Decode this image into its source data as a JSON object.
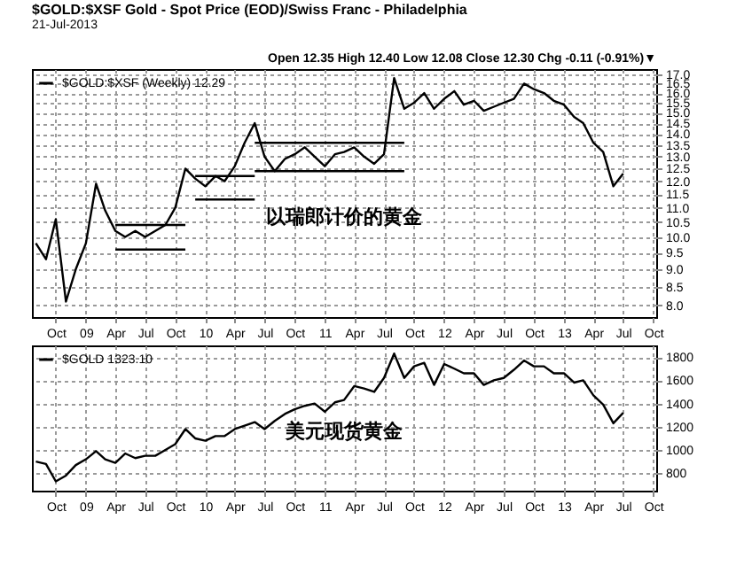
{
  "chart_data": [
    {
      "type": "line",
      "title": "$GOLD:$XSF Gold - Spot Price (EOD)/Swiss Franc - Philadelphia",
      "subtitle": "21-Jul-2013",
      "annotations": [
        "Open 12.35 High 12.40 Low 12.08 Close 12.30 Chg -0.11 (-0.91%)▼",
        "以瑞郎计价的黄金"
      ],
      "x": [
        "2008-08",
        "2008-09",
        "2008-10",
        "2008-11",
        "2008-12",
        "2009-01",
        "2009-02",
        "2009-03",
        "2009-04",
        "2009-05",
        "2009-06",
        "2009-07",
        "2009-08",
        "2009-09",
        "2009-10",
        "2009-11",
        "2009-12",
        "2010-01",
        "2010-02",
        "2010-03",
        "2010-04",
        "2010-05",
        "2010-06",
        "2010-07",
        "2010-08",
        "2010-09",
        "2010-10",
        "2010-11",
        "2010-12",
        "2011-01",
        "2011-02",
        "2011-03",
        "2011-04",
        "2011-05",
        "2011-06",
        "2011-07",
        "2011-08",
        "2011-09",
        "2011-10",
        "2011-11",
        "2011-12",
        "2012-01",
        "2012-02",
        "2012-03",
        "2012-04",
        "2012-05",
        "2012-06",
        "2012-07",
        "2012-08",
        "2012-09",
        "2012-10",
        "2012-11",
        "2012-12",
        "2013-01",
        "2013-02",
        "2013-03",
        "2013-04",
        "2013-05",
        "2013-06",
        "2013-07"
      ],
      "series": [
        {
          "name": "$GOLD:$XSF (Weekly) 12.29",
          "color": "#000000",
          "values": [
            9.8,
            9.3,
            10.6,
            8.1,
            9.0,
            9.8,
            11.9,
            10.9,
            10.2,
            10.0,
            10.2,
            10.0,
            10.2,
            10.4,
            11.0,
            12.5,
            12.1,
            11.8,
            12.2,
            12.0,
            12.6,
            13.6,
            14.5,
            13.0,
            12.4,
            12.9,
            13.1,
            13.4,
            13.0,
            12.6,
            13.1,
            13.2,
            13.4,
            13.0,
            12.7,
            13.1,
            16.8,
            15.2,
            15.5,
            16.0,
            15.2,
            15.7,
            16.1,
            15.4,
            15.6,
            15.1,
            15.3,
            15.5,
            15.7,
            16.5,
            16.2,
            16.0,
            15.6,
            15.4,
            14.8,
            14.5,
            13.6,
            13.2,
            11.8,
            12.3
          ]
        },
        {
          "color": "#000000",
          "x": [
            "2009-04",
            "2009-11"
          ],
          "values": [
            10.4,
            10.4
          ]
        },
        {
          "color": "#000000",
          "x": [
            "2009-04",
            "2009-11"
          ],
          "values": [
            9.6,
            9.6
          ]
        },
        {
          "color": "#000000",
          "x": [
            "2009-12",
            "2010-06"
          ],
          "values": [
            12.2,
            12.2
          ]
        },
        {
          "color": "#000000",
          "x": [
            "2009-12",
            "2010-06"
          ],
          "values": [
            11.3,
            11.3
          ]
        },
        {
          "color": "#000000",
          "x": [
            "2010-06",
            "2011-09"
          ],
          "values": [
            13.6,
            13.6
          ]
        },
        {
          "color": "#000000",
          "x": [
            "2010-06",
            "2011-09"
          ],
          "values": [
            12.4,
            12.4
          ]
        }
      ],
      "log": "y",
      "ylim": [
        7.7,
        17.3
      ],
      "yticks": [
        {
          "value": 8,
          "label": "8.0"
        },
        8.5,
        {
          "value": 9,
          "label": "9.0"
        },
        9.5,
        {
          "value": 10,
          "label": "10.0"
        },
        10.5,
        {
          "value": 11,
          "label": "11.0"
        },
        11.5,
        {
          "value": 12,
          "label": "12.0"
        },
        12.5,
        {
          "value": 13,
          "label": "13.0"
        },
        13.5,
        {
          "value": 14,
          "label": "14.0"
        },
        14.5,
        {
          "value": 15,
          "label": "15.0"
        },
        15.5,
        {
          "value": 16,
          "label": "16.0"
        },
        16.5,
        {
          "value": 17,
          "label": "17.0"
        }
      ],
      "xlim": [
        "2008-07-20",
        "2013-10-10"
      ],
      "xticks": [
        {
          "value": "2008-10",
          "label": "Oct"
        },
        {
          "value": "2009-01",
          "label": "09"
        },
        {
          "value": "2009-04",
          "label": "Apr"
        },
        {
          "value": "2009-07",
          "label": "Jul"
        },
        {
          "value": "2009-10",
          "label": "Oct"
        },
        {
          "value": "2010-01",
          "label": "10"
        },
        {
          "value": "2010-04",
          "label": "Apr"
        },
        {
          "value": "2010-07",
          "label": "Jul"
        },
        {
          "value": "2010-10",
          "label": "Oct"
        },
        {
          "value": "2011-01",
          "label": "11"
        },
        {
          "value": "2011-04",
          "label": "Apr"
        },
        {
          "value": "2011-07",
          "label": "Jul"
        },
        {
          "value": "2011-10",
          "label": "Oct"
        },
        {
          "value": "2012-01",
          "label": "12"
        },
        {
          "value": "2012-04",
          "label": "Apr"
        },
        {
          "value": "2012-07",
          "label": "Jul"
        },
        {
          "value": "2012-10",
          "label": "Oct"
        },
        {
          "value": "2013-01",
          "label": "13"
        },
        {
          "value": "2013-04",
          "label": "Apr"
        },
        {
          "value": "2013-07",
          "label": "Jul"
        },
        {
          "value": "2013-10",
          "label": "Oct"
        }
      ],
      "grid": true,
      "legend": "top left",
      "marker": "none",
      "line_style": "solid"
    },
    {
      "type": "line",
      "annotations": [
        "美元现货黄金"
      ],
      "x": [
        "2008-08",
        "2008-09",
        "2008-10",
        "2008-11",
        "2008-12",
        "2009-01",
        "2009-02",
        "2009-03",
        "2009-04",
        "2009-05",
        "2009-06",
        "2009-07",
        "2009-08",
        "2009-09",
        "2009-10",
        "2009-11",
        "2009-12",
        "2010-01",
        "2010-02",
        "2010-03",
        "2010-04",
        "2010-05",
        "2010-06",
        "2010-07",
        "2010-08",
        "2010-09",
        "2010-10",
        "2010-11",
        "2010-12",
        "2011-01",
        "2011-02",
        "2011-03",
        "2011-04",
        "2011-05",
        "2011-06",
        "2011-07",
        "2011-08",
        "2011-09",
        "2011-10",
        "2011-11",
        "2011-12",
        "2012-01",
        "2012-02",
        "2012-03",
        "2012-04",
        "2012-05",
        "2012-06",
        "2012-07",
        "2012-08",
        "2012-09",
        "2012-10",
        "2012-11",
        "2012-12",
        "2013-01",
        "2013-02",
        "2013-03",
        "2013-04",
        "2013-05",
        "2013-06",
        "2013-07"
      ],
      "series": [
        {
          "name": "$GOLD 1323.10",
          "color": "#000000",
          "values": [
            900,
            880,
            730,
            780,
            870,
            920,
            990,
            920,
            890,
            970,
            930,
            950,
            950,
            1000,
            1050,
            1180,
            1100,
            1080,
            1120,
            1120,
            1180,
            1210,
            1240,
            1180,
            1250,
            1310,
            1350,
            1380,
            1400,
            1330,
            1410,
            1430,
            1550,
            1530,
            1500,
            1620,
            1830,
            1620,
            1720,
            1750,
            1560,
            1740,
            1700,
            1660,
            1660,
            1560,
            1600,
            1620,
            1690,
            1770,
            1720,
            1720,
            1660,
            1660,
            1580,
            1600,
            1470,
            1390,
            1230,
            1320
          ]
        }
      ],
      "ylim": [
        650,
        1900
      ],
      "yticks": [
        800,
        1000,
        1200,
        1400,
        1600,
        1800
      ],
      "xlim": [
        "2008-07-20",
        "2013-10-10"
      ],
      "xticks": [
        {
          "value": "2008-10",
          "label": "Oct"
        },
        {
          "value": "2009-01",
          "label": "09"
        },
        {
          "value": "2009-04",
          "label": "Apr"
        },
        {
          "value": "2009-07",
          "label": "Jul"
        },
        {
          "value": "2009-10",
          "label": "Oct"
        },
        {
          "value": "2010-01",
          "label": "10"
        },
        {
          "value": "2010-04",
          "label": "Apr"
        },
        {
          "value": "2010-07",
          "label": "Jul"
        },
        {
          "value": "2010-10",
          "label": "Oct"
        },
        {
          "value": "2011-01",
          "label": "11"
        },
        {
          "value": "2011-04",
          "label": "Apr"
        },
        {
          "value": "2011-07",
          "label": "Jul"
        },
        {
          "value": "2011-10",
          "label": "Oct"
        },
        {
          "value": "2012-01",
          "label": "12"
        },
        {
          "value": "2012-04",
          "label": "Apr"
        },
        {
          "value": "2012-07",
          "label": "Jul"
        },
        {
          "value": "2012-10",
          "label": "Oct"
        },
        {
          "value": "2013-01",
          "label": "13"
        },
        {
          "value": "2013-04",
          "label": "Apr"
        },
        {
          "value": "2013-07",
          "label": "Jul"
        },
        {
          "value": "2013-10",
          "label": "Oct"
        }
      ],
      "grid": true,
      "legend": "top left",
      "marker": "none",
      "line_style": "solid"
    }
  ]
}
